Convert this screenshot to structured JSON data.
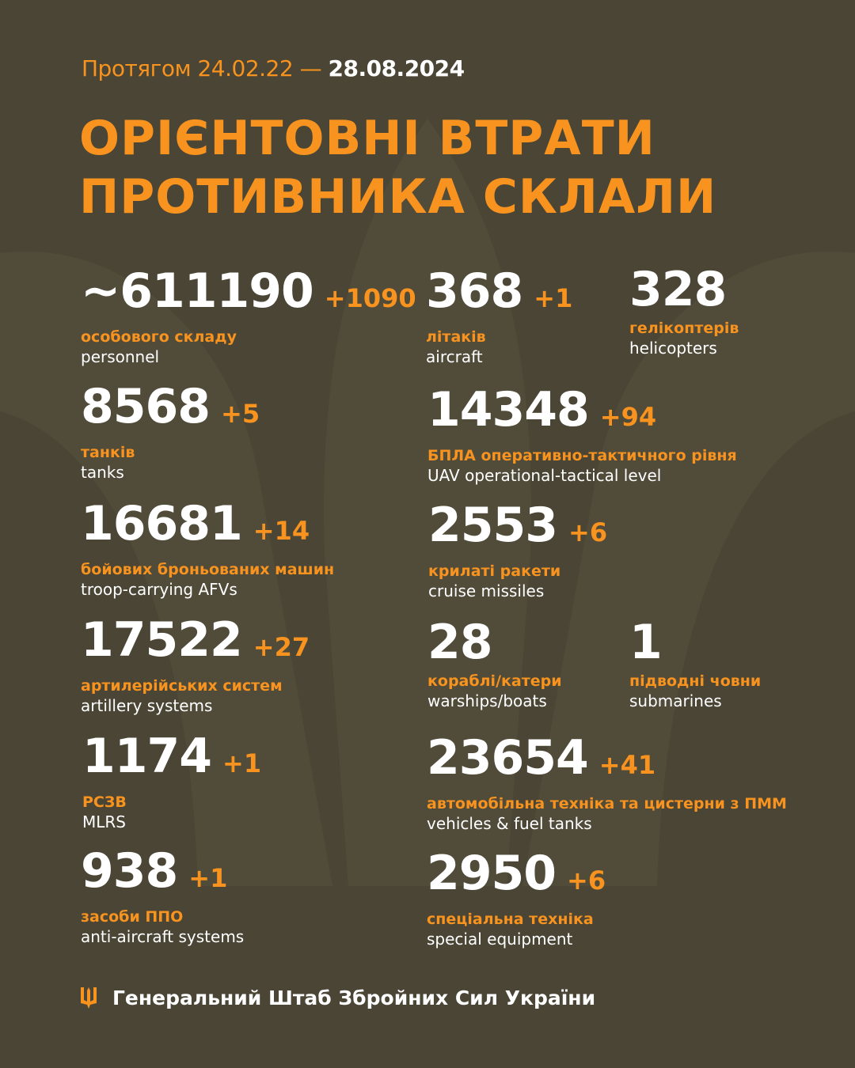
{
  "header": {
    "period_prefix": "Протягом 24.02.22 —",
    "period_date": "28.08.2024",
    "title_line1": "ОРІЄНТОВНІ ВТРАТИ",
    "title_line2": "ПРОТИВНИКА СКЛАЛИ"
  },
  "colors": {
    "background": "#4a4535",
    "accent": "#f7931e",
    "text": "#ffffff"
  },
  "stats": [
    {
      "value": "~611190",
      "delta": "+1090",
      "uk": "особового складу",
      "en": "personnel"
    },
    {
      "value": "368",
      "delta": "+1",
      "uk": "літаків",
      "en": "aircraft"
    },
    {
      "value": "328",
      "delta": "",
      "uk": "гелікоптерів",
      "en": "helicopters"
    },
    {
      "value": "8568",
      "delta": "+5",
      "uk": "танків",
      "en": "tanks"
    },
    {
      "value": "14348",
      "delta": "+94",
      "uk": "БПЛА оперативно-тактичного рівня",
      "en": "UAV operational-tactical level"
    },
    {
      "value": "16681",
      "delta": "+14",
      "uk": "бойових броньованих машин",
      "en": "troop-carrying AFVs"
    },
    {
      "value": "2553",
      "delta": "+6",
      "uk": "крилаті ракети",
      "en": "cruise missiles"
    },
    {
      "value": "17522",
      "delta": "+27",
      "uk": "артилерійських систем",
      "en": "artillery systems"
    },
    {
      "value": "28",
      "delta": "",
      "uk": "кораблі/катери",
      "en": "warships/boats"
    },
    {
      "value": "1",
      "delta": "",
      "uk": "підводні човни",
      "en": "submarines"
    },
    {
      "value": "1174",
      "delta": "+1",
      "uk": "РСЗВ",
      "en": "MLRS"
    },
    {
      "value": "23654",
      "delta": "+41",
      "uk": "автомобільна техніка та цистерни з ПММ",
      "en": "vehicles & fuel tanks"
    },
    {
      "value": "938",
      "delta": "+1",
      "uk": "засоби ППО",
      "en": "anti-aircraft systems"
    },
    {
      "value": "2950",
      "delta": "+6",
      "uk": "спеціальна техніка",
      "en": "special equipment"
    }
  ],
  "footer": {
    "icon": "trident-icon",
    "text": "Генеральний Штаб Збройних Сил України"
  }
}
